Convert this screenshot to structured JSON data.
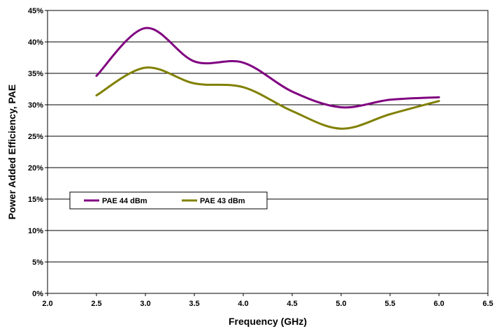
{
  "chart_data": {
    "type": "line",
    "xlabel": "Frequency (GHz)",
    "ylabel": "Power Added Efficiency, PAE",
    "xlim": [
      2.0,
      6.5
    ],
    "ylim": [
      0,
      45
    ],
    "x_ticks": [
      "2.0",
      "2.5",
      "3.0",
      "3.5",
      "4.0",
      "4.5",
      "5.0",
      "5.5",
      "6.0",
      "6.5"
    ],
    "y_ticks": [
      "0%",
      "5%",
      "10%",
      "15%",
      "20%",
      "25%",
      "30%",
      "35%",
      "40%",
      "45%"
    ],
    "grid": "horizontal",
    "legend_position": "middle-left",
    "series": [
      {
        "name": "PAE 44 dBm",
        "color": "#800080",
        "x": [
          2.5,
          3.0,
          3.5,
          4.0,
          4.5,
          5.0,
          5.5,
          6.0
        ],
        "values": [
          34.6,
          42.2,
          36.9,
          36.7,
          32.1,
          29.6,
          30.8,
          31.2
        ]
      },
      {
        "name": "PAE 43 dBm",
        "color": "#808000",
        "x": [
          2.5,
          3.0,
          3.5,
          4.0,
          4.5,
          5.0,
          5.5,
          6.0
        ],
        "values": [
          31.5,
          35.9,
          33.4,
          32.8,
          29.0,
          26.2,
          28.5,
          30.6
        ]
      }
    ]
  }
}
